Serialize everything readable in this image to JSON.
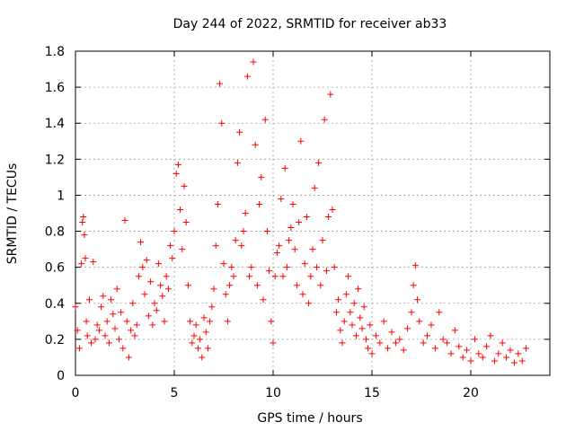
{
  "chart_data": {
    "type": "scatter",
    "title": "Day 244 of 2022, SRMTID for receiver ab33",
    "xlabel": "GPS time / hours",
    "ylabel": "SRMTID / TECUs",
    "xlim": [
      0,
      24
    ],
    "ylim": [
      0,
      1.8
    ],
    "xticks": [
      0,
      5,
      10,
      15,
      20
    ],
    "xtick_labels": [
      "0",
      "5",
      "10",
      "15",
      "20"
    ],
    "yticks": [
      0,
      0.2,
      0.4,
      0.6,
      0.8,
      1.0,
      1.2,
      1.4,
      1.6,
      1.8
    ],
    "ytick_labels": [
      "0",
      "0.2",
      "0.4",
      "0.6",
      "0.8",
      "1",
      "1.2",
      "1.4",
      "1.6",
      "1.8"
    ],
    "grid": true,
    "marker": "+",
    "color": "#ff0000",
    "series": [
      {
        "name": "SRMTID",
        "x": [
          0.0,
          0.1,
          0.2,
          0.3,
          0.35,
          0.4,
          0.45,
          0.5,
          0.55,
          0.6,
          0.7,
          0.8,
          0.9,
          1.0,
          1.1,
          1.2,
          1.3,
          1.4,
          1.5,
          1.6,
          1.7,
          1.8,
          1.9,
          2.0,
          2.1,
          2.2,
          2.3,
          2.4,
          2.5,
          2.6,
          2.7,
          2.8,
          2.9,
          3.0,
          3.1,
          3.2,
          3.3,
          3.4,
          3.5,
          3.6,
          3.7,
          3.8,
          3.9,
          4.0,
          4.1,
          4.2,
          4.3,
          4.4,
          4.5,
          4.6,
          4.7,
          4.8,
          4.9,
          5.0,
          5.1,
          5.2,
          5.3,
          5.4,
          5.5,
          5.6,
          5.7,
          5.8,
          5.9,
          6.0,
          6.1,
          6.2,
          6.3,
          6.4,
          6.5,
          6.6,
          6.7,
          6.8,
          6.9,
          7.0,
          7.1,
          7.2,
          7.3,
          7.4,
          7.5,
          7.6,
          7.7,
          7.8,
          7.9,
          8.0,
          8.1,
          8.2,
          8.3,
          8.4,
          8.5,
          8.6,
          8.7,
          8.8,
          8.9,
          9.0,
          9.1,
          9.2,
          9.3,
          9.4,
          9.5,
          9.6,
          9.7,
          9.8,
          9.9,
          10.0,
          10.1,
          10.2,
          10.3,
          10.4,
          10.5,
          10.6,
          10.7,
          10.8,
          10.9,
          11.0,
          11.1,
          11.2,
          11.3,
          11.4,
          11.5,
          11.6,
          11.7,
          11.8,
          11.9,
          12.0,
          12.1,
          12.2,
          12.3,
          12.4,
          12.5,
          12.6,
          12.7,
          12.8,
          12.9,
          13.0,
          13.1,
          13.2,
          13.3,
          13.4,
          13.5,
          13.6,
          13.7,
          13.8,
          13.9,
          14.0,
          14.1,
          14.2,
          14.3,
          14.4,
          14.5,
          14.6,
          14.7,
          14.8,
          14.9,
          15.0,
          15.2,
          15.4,
          15.6,
          15.8,
          16.0,
          16.2,
          16.4,
          16.6,
          16.8,
          17.0,
          17.1,
          17.2,
          17.3,
          17.4,
          17.6,
          17.8,
          18.0,
          18.2,
          18.4,
          18.6,
          18.8,
          19.0,
          19.2,
          19.4,
          19.6,
          19.8,
          20.0,
          20.2,
          20.4,
          20.6,
          20.8,
          21.0,
          21.2,
          21.4,
          21.6,
          21.8,
          22.0,
          22.2,
          22.4,
          22.6,
          22.8
        ],
        "y": [
          0.38,
          0.25,
          0.15,
          0.62,
          0.85,
          0.88,
          0.78,
          0.65,
          0.3,
          0.22,
          0.42,
          0.18,
          0.63,
          0.2,
          0.28,
          0.25,
          0.38,
          0.44,
          0.22,
          0.3,
          0.18,
          0.42,
          0.34,
          0.26,
          0.48,
          0.2,
          0.35,
          0.15,
          0.86,
          0.3,
          0.1,
          0.25,
          0.4,
          0.22,
          0.28,
          0.55,
          0.74,
          0.6,
          0.45,
          0.64,
          0.33,
          0.52,
          0.28,
          0.4,
          0.36,
          0.62,
          0.5,
          0.44,
          0.3,
          0.55,
          0.48,
          0.72,
          0.65,
          0.8,
          1.12,
          1.17,
          0.92,
          0.7,
          1.05,
          0.85,
          0.5,
          0.3,
          0.18,
          0.22,
          0.28,
          0.15,
          0.2,
          0.1,
          0.32,
          0.24,
          0.15,
          0.3,
          0.38,
          0.48,
          0.72,
          0.95,
          1.62,
          1.4,
          0.62,
          0.45,
          0.3,
          0.5,
          0.6,
          0.55,
          0.75,
          1.18,
          1.35,
          0.72,
          0.8,
          0.9,
          1.66,
          0.55,
          0.6,
          1.74,
          1.28,
          0.5,
          0.95,
          1.1,
          0.42,
          1.42,
          0.8,
          0.58,
          0.3,
          0.18,
          0.55,
          0.68,
          0.72,
          0.98,
          0.55,
          1.15,
          0.6,
          0.75,
          0.82,
          0.95,
          0.7,
          0.5,
          0.85,
          1.3,
          0.45,
          0.62,
          0.88,
          0.4,
          0.55,
          0.7,
          1.04,
          0.6,
          1.18,
          0.5,
          0.75,
          1.42,
          0.58,
          0.88,
          1.56,
          0.92,
          0.6,
          0.35,
          0.42,
          0.25,
          0.18,
          0.3,
          0.45,
          0.55,
          0.35,
          0.28,
          0.4,
          0.22,
          0.48,
          0.32,
          0.26,
          0.38,
          0.2,
          0.15,
          0.28,
          0.12,
          0.22,
          0.18,
          0.3,
          0.15,
          0.24,
          0.18,
          0.2,
          0.14,
          0.26,
          0.35,
          0.5,
          0.61,
          0.42,
          0.3,
          0.18,
          0.22,
          0.28,
          0.15,
          0.35,
          0.2,
          0.18,
          0.12,
          0.25,
          0.16,
          0.1,
          0.14,
          0.08,
          0.2,
          0.12,
          0.1,
          0.16,
          0.22,
          0.08,
          0.12,
          0.18,
          0.1,
          0.14,
          0.07,
          0.12,
          0.08,
          0.15
        ]
      }
    ]
  }
}
